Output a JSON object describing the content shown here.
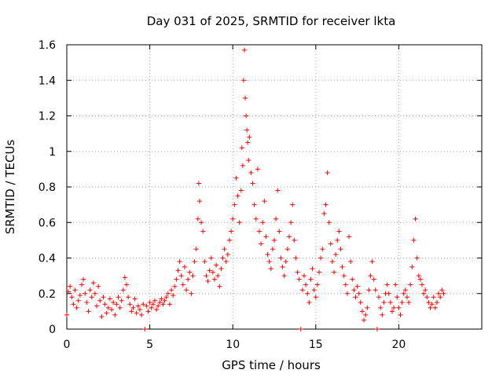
{
  "chart_data": {
    "type": "scatter",
    "title": "Day 031 of 2025, SRMTID for receiver lkta",
    "xlabel": "GPS time / hours",
    "ylabel": "SRMTID / TECUs",
    "xlim": [
      0,
      25
    ],
    "ylim": [
      0,
      1.6
    ],
    "xticks": [
      0,
      5,
      10,
      15,
      20
    ],
    "xtick_labels": [
      "0",
      "5",
      "10",
      "15",
      "20"
    ],
    "yticks": [
      0,
      0.2,
      0.4,
      0.6,
      0.8,
      1.0,
      1.2,
      1.4,
      1.6
    ],
    "ytick_labels": [
      "0",
      "0.2",
      "0.4",
      "0.6",
      "0.8",
      "1",
      "1.2",
      "1.4",
      "1.6"
    ],
    "grid": true,
    "marker": "+",
    "color": "#ff0000",
    "series": [
      {
        "name": "SRMTID",
        "points": [
          [
            0.0,
            0.08
          ],
          [
            0.1,
            0.21
          ],
          [
            0.2,
            0.24
          ],
          [
            0.3,
            0.18
          ],
          [
            0.4,
            0.14
          ],
          [
            0.5,
            0.22
          ],
          [
            0.6,
            0.12
          ],
          [
            0.7,
            0.16
          ],
          [
            0.8,
            0.19
          ],
          [
            0.9,
            0.25
          ],
          [
            1.0,
            0.28
          ],
          [
            1.1,
            0.2
          ],
          [
            1.2,
            0.15
          ],
          [
            1.3,
            0.1
          ],
          [
            1.4,
            0.22
          ],
          [
            1.5,
            0.18
          ],
          [
            1.6,
            0.26
          ],
          [
            1.7,
            0.2
          ],
          [
            1.8,
            0.13
          ],
          [
            1.9,
            0.24
          ],
          [
            2.0,
            0.16
          ],
          [
            2.1,
            0.07
          ],
          [
            2.2,
            0.18
          ],
          [
            2.3,
            0.14
          ],
          [
            2.4,
            0.09
          ],
          [
            2.5,
            0.12
          ],
          [
            2.6,
            0.17
          ],
          [
            2.7,
            0.11
          ],
          [
            2.8,
            0.15
          ],
          [
            2.9,
            0.08
          ],
          [
            3.0,
            0.14
          ],
          [
            3.1,
            0.18
          ],
          [
            3.2,
            0.12
          ],
          [
            3.3,
            0.16
          ],
          [
            3.4,
            0.22
          ],
          [
            3.5,
            0.29
          ],
          [
            3.6,
            0.25
          ],
          [
            3.7,
            0.18
          ],
          [
            3.8,
            0.14
          ],
          [
            3.9,
            0.1
          ],
          [
            4.0,
            0.12
          ],
          [
            4.1,
            0.17
          ],
          [
            4.2,
            0.09
          ],
          [
            4.3,
            0.13
          ],
          [
            4.4,
            0.11
          ],
          [
            4.5,
            0.08
          ],
          [
            4.6,
            0.14
          ],
          [
            4.7,
            0.0
          ],
          [
            4.8,
            0.13
          ],
          [
            4.9,
            0.1
          ],
          [
            5.0,
            0.15
          ],
          [
            5.1,
            0.12
          ],
          [
            5.2,
            0.14
          ],
          [
            5.3,
            0.16
          ],
          [
            5.4,
            0.11
          ],
          [
            5.5,
            0.13
          ],
          [
            5.6,
            0.15
          ],
          [
            5.7,
            0.17
          ],
          [
            5.8,
            0.14
          ],
          [
            5.9,
            0.16
          ],
          [
            6.0,
            0.18
          ],
          [
            6.1,
            0.2
          ],
          [
            6.2,
            0.14
          ],
          [
            6.3,
            0.22
          ],
          [
            6.4,
            0.19
          ],
          [
            6.5,
            0.24
          ],
          [
            6.6,
            0.28
          ],
          [
            6.7,
            0.33
          ],
          [
            6.8,
            0.38
          ],
          [
            6.9,
            0.3
          ],
          [
            7.0,
            0.25
          ],
          [
            7.1,
            0.35
          ],
          [
            7.2,
            0.22
          ],
          [
            7.3,
            0.28
          ],
          [
            7.4,
            0.32
          ],
          [
            7.5,
            0.2
          ],
          [
            7.6,
            0.3
          ],
          [
            7.7,
            0.38
          ],
          [
            7.8,
            0.45
          ],
          [
            7.9,
            0.62
          ],
          [
            7.95,
            0.82
          ],
          [
            8.0,
            0.72
          ],
          [
            8.1,
            0.6
          ],
          [
            8.2,
            0.55
          ],
          [
            8.3,
            0.38
          ],
          [
            8.4,
            0.3
          ],
          [
            8.5,
            0.27
          ],
          [
            8.6,
            0.33
          ],
          [
            8.7,
            0.4
          ],
          [
            8.8,
            0.32
          ],
          [
            8.9,
            0.28
          ],
          [
            9.0,
            0.36
          ],
          [
            9.1,
            0.3
          ],
          [
            9.2,
            0.24
          ],
          [
            9.3,
            0.34
          ],
          [
            9.4,
            0.4
          ],
          [
            9.5,
            0.45
          ],
          [
            9.6,
            0.38
          ],
          [
            9.7,
            0.42
          ],
          [
            9.8,
            0.5
          ],
          [
            9.9,
            0.55
          ],
          [
            10.0,
            0.62
          ],
          [
            10.1,
            0.7
          ],
          [
            10.2,
            0.85
          ],
          [
            10.3,
            0.75
          ],
          [
            10.4,
            0.6
          ],
          [
            10.5,
            0.78
          ],
          [
            10.55,
            1.02
          ],
          [
            10.6,
            0.92
          ],
          [
            10.65,
            1.4
          ],
          [
            10.7,
            1.57
          ],
          [
            10.75,
            1.3
          ],
          [
            10.8,
            1.2
          ],
          [
            10.85,
            1.12
          ],
          [
            10.9,
            1.05
          ],
          [
            10.95,
            0.95
          ],
          [
            11.0,
            1.08
          ],
          [
            11.1,
            0.88
          ],
          [
            11.2,
            0.82
          ],
          [
            11.3,
            0.7
          ],
          [
            11.4,
            0.62
          ],
          [
            11.5,
            0.9
          ],
          [
            11.6,
            0.55
          ],
          [
            11.7,
            0.48
          ],
          [
            11.8,
            0.6
          ],
          [
            11.9,
            0.72
          ],
          [
            12.0,
            0.52
          ],
          [
            12.1,
            0.42
          ],
          [
            12.2,
            0.38
          ],
          [
            12.3,
            0.34
          ],
          [
            12.4,
            0.45
          ],
          [
            12.5,
            0.5
          ],
          [
            12.6,
            0.62
          ],
          [
            12.7,
            0.78
          ],
          [
            12.8,
            0.55
          ],
          [
            12.9,
            0.4
          ],
          [
            13.0,
            0.35
          ],
          [
            13.1,
            0.3
          ],
          [
            13.2,
            0.38
          ],
          [
            13.3,
            0.45
          ],
          [
            13.4,
            0.52
          ],
          [
            13.5,
            0.6
          ],
          [
            13.6,
            0.7
          ],
          [
            13.7,
            0.5
          ],
          [
            13.8,
            0.4
          ],
          [
            13.9,
            0.32
          ],
          [
            14.0,
            0.28
          ],
          [
            14.1,
            0.0
          ],
          [
            14.2,
            0.22
          ],
          [
            14.3,
            0.3
          ],
          [
            14.4,
            0.25
          ],
          [
            14.5,
            0.2
          ],
          [
            14.6,
            0.15
          ],
          [
            14.7,
            0.28
          ],
          [
            14.8,
            0.34
          ],
          [
            14.9,
            0.22
          ],
          [
            15.0,
            0.18
          ],
          [
            15.1,
            0.25
          ],
          [
            15.2,
            0.32
          ],
          [
            15.3,
            0.4
          ],
          [
            15.4,
            0.45
          ],
          [
            15.5,
            0.65
          ],
          [
            15.6,
            0.7
          ],
          [
            15.7,
            0.88
          ],
          [
            15.8,
            0.6
          ],
          [
            15.9,
            0.48
          ],
          [
            16.0,
            0.38
          ],
          [
            16.1,
            0.32
          ],
          [
            16.2,
            0.42
          ],
          [
            16.3,
            0.5
          ],
          [
            16.4,
            0.55
          ],
          [
            16.5,
            0.45
          ],
          [
            16.6,
            0.35
          ],
          [
            16.7,
            0.3
          ],
          [
            16.8,
            0.25
          ],
          [
            16.9,
            0.2
          ],
          [
            17.0,
            0.52
          ],
          [
            17.1,
            0.38
          ],
          [
            17.2,
            0.28
          ],
          [
            17.3,
            0.22
          ],
          [
            17.4,
            0.18
          ],
          [
            17.5,
            0.24
          ],
          [
            17.6,
            0.2
          ],
          [
            17.7,
            0.15
          ],
          [
            17.8,
            0.1
          ],
          [
            17.9,
            0.05
          ],
          [
            18.0,
            0.08
          ],
          [
            18.1,
            0.12
          ],
          [
            18.2,
            0.22
          ],
          [
            18.3,
            0.3
          ],
          [
            18.4,
            0.38
          ],
          [
            18.5,
            0.28
          ],
          [
            18.6,
            0.22
          ],
          [
            18.7,
            0.0
          ],
          [
            18.8,
            0.18
          ],
          [
            18.9,
            0.12
          ],
          [
            19.0,
            0.08
          ],
          [
            19.1,
            0.15
          ],
          [
            19.2,
            0.2
          ],
          [
            19.3,
            0.25
          ],
          [
            19.4,
            0.2
          ],
          [
            19.5,
            0.15
          ],
          [
            19.6,
            0.1
          ],
          [
            19.7,
            0.12
          ],
          [
            19.8,
            0.25
          ],
          [
            19.9,
            0.18
          ],
          [
            20.0,
            0.12
          ],
          [
            20.1,
            0.08
          ],
          [
            20.2,
            0.15
          ],
          [
            20.3,
            0.2
          ],
          [
            20.4,
            0.22
          ],
          [
            20.5,
            0.18
          ],
          [
            20.6,
            0.15
          ],
          [
            20.7,
            0.25
          ],
          [
            20.8,
            0.35
          ],
          [
            20.9,
            0.5
          ],
          [
            21.0,
            0.62
          ],
          [
            21.1,
            0.4
          ],
          [
            21.2,
            0.3
          ],
          [
            21.3,
            0.28
          ],
          [
            21.4,
            0.25
          ],
          [
            21.5,
            0.2
          ],
          [
            21.6,
            0.22
          ],
          [
            21.7,
            0.18
          ],
          [
            21.8,
            0.15
          ],
          [
            21.9,
            0.12
          ],
          [
            22.0,
            0.14
          ],
          [
            22.1,
            0.18
          ],
          [
            22.2,
            0.12
          ],
          [
            22.3,
            0.15
          ],
          [
            22.4,
            0.2
          ],
          [
            22.5,
            0.18
          ],
          [
            22.6,
            0.22
          ],
          [
            22.7,
            0.2
          ]
        ]
      }
    ]
  }
}
